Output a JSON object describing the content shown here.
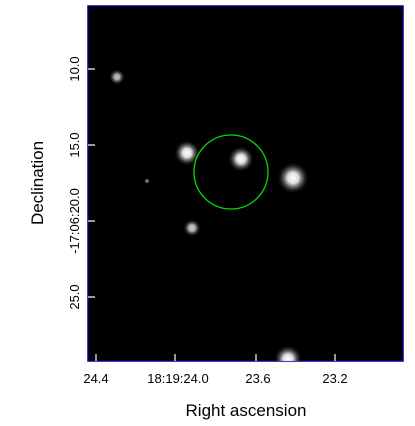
{
  "plot": {
    "x_axis_title": "Right ascension",
    "y_axis_title": "Declination",
    "x_tick_labels": [
      "24.4",
      "18:19:24.0",
      "23.6",
      "23.2"
    ],
    "y_tick_labels": [
      "10.0",
      "15.0",
      "-17:06:20.0",
      "25.0"
    ],
    "background_color": "#000000",
    "frame_color": "#00008b",
    "aperture_color": "#00e000"
  }
}
